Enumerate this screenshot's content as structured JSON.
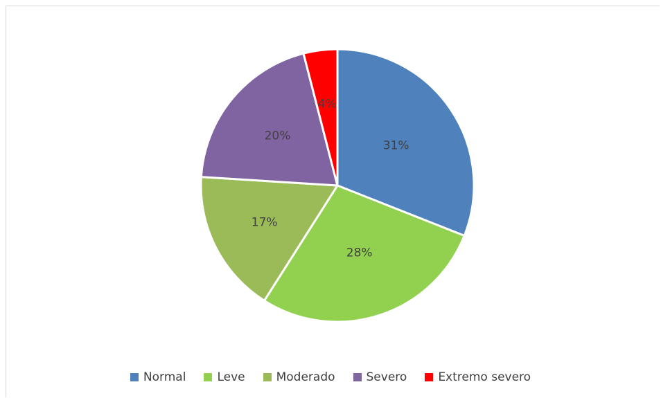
{
  "chart_data": {
    "type": "pie",
    "title": "",
    "categories": [
      "Normal",
      "Leve",
      "Moderado",
      "Severo",
      "Extremo severo"
    ],
    "values": [
      31,
      28,
      17,
      20,
      4
    ],
    "labels": [
      "31%",
      "28%",
      "17%",
      "20%",
      "4%"
    ],
    "colors": [
      "#4f81bd",
      "#92d050",
      "#9bbb59",
      "#8064a2",
      "#ff0000"
    ],
    "legend_position": "bottom",
    "start_angle": "12 o'clock, clockwise"
  }
}
